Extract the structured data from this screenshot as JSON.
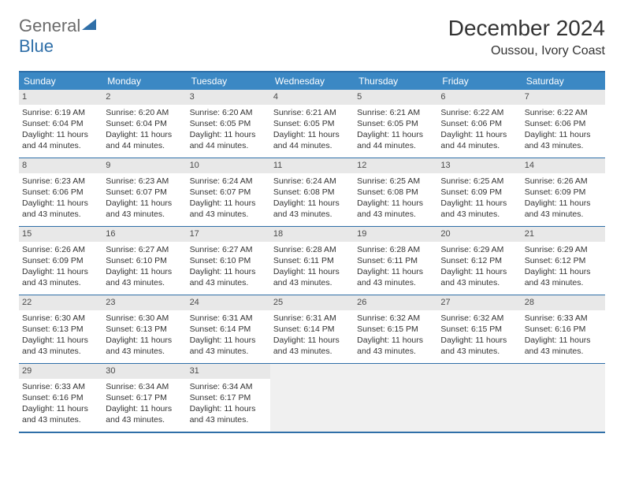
{
  "brand": {
    "name_part1": "General",
    "name_part2": "Blue",
    "colors": {
      "gray": "#6b6b6b",
      "blue": "#2f6fa8",
      "header_blue": "#3b88c4"
    }
  },
  "title": "December 2024",
  "location": "Oussou, Ivory Coast",
  "day_headers": [
    "Sunday",
    "Monday",
    "Tuesday",
    "Wednesday",
    "Thursday",
    "Friday",
    "Saturday"
  ],
  "weeks": [
    [
      {
        "n": "1",
        "sunrise": "Sunrise: 6:19 AM",
        "sunset": "Sunset: 6:04 PM",
        "daylight": "Daylight: 11 hours and 44 minutes."
      },
      {
        "n": "2",
        "sunrise": "Sunrise: 6:20 AM",
        "sunset": "Sunset: 6:04 PM",
        "daylight": "Daylight: 11 hours and 44 minutes."
      },
      {
        "n": "3",
        "sunrise": "Sunrise: 6:20 AM",
        "sunset": "Sunset: 6:05 PM",
        "daylight": "Daylight: 11 hours and 44 minutes."
      },
      {
        "n": "4",
        "sunrise": "Sunrise: 6:21 AM",
        "sunset": "Sunset: 6:05 PM",
        "daylight": "Daylight: 11 hours and 44 minutes."
      },
      {
        "n": "5",
        "sunrise": "Sunrise: 6:21 AM",
        "sunset": "Sunset: 6:05 PM",
        "daylight": "Daylight: 11 hours and 44 minutes."
      },
      {
        "n": "6",
        "sunrise": "Sunrise: 6:22 AM",
        "sunset": "Sunset: 6:06 PM",
        "daylight": "Daylight: 11 hours and 44 minutes."
      },
      {
        "n": "7",
        "sunrise": "Sunrise: 6:22 AM",
        "sunset": "Sunset: 6:06 PM",
        "daylight": "Daylight: 11 hours and 43 minutes."
      }
    ],
    [
      {
        "n": "8",
        "sunrise": "Sunrise: 6:23 AM",
        "sunset": "Sunset: 6:06 PM",
        "daylight": "Daylight: 11 hours and 43 minutes."
      },
      {
        "n": "9",
        "sunrise": "Sunrise: 6:23 AM",
        "sunset": "Sunset: 6:07 PM",
        "daylight": "Daylight: 11 hours and 43 minutes."
      },
      {
        "n": "10",
        "sunrise": "Sunrise: 6:24 AM",
        "sunset": "Sunset: 6:07 PM",
        "daylight": "Daylight: 11 hours and 43 minutes."
      },
      {
        "n": "11",
        "sunrise": "Sunrise: 6:24 AM",
        "sunset": "Sunset: 6:08 PM",
        "daylight": "Daylight: 11 hours and 43 minutes."
      },
      {
        "n": "12",
        "sunrise": "Sunrise: 6:25 AM",
        "sunset": "Sunset: 6:08 PM",
        "daylight": "Daylight: 11 hours and 43 minutes."
      },
      {
        "n": "13",
        "sunrise": "Sunrise: 6:25 AM",
        "sunset": "Sunset: 6:09 PM",
        "daylight": "Daylight: 11 hours and 43 minutes."
      },
      {
        "n": "14",
        "sunrise": "Sunrise: 6:26 AM",
        "sunset": "Sunset: 6:09 PM",
        "daylight": "Daylight: 11 hours and 43 minutes."
      }
    ],
    [
      {
        "n": "15",
        "sunrise": "Sunrise: 6:26 AM",
        "sunset": "Sunset: 6:09 PM",
        "daylight": "Daylight: 11 hours and 43 minutes."
      },
      {
        "n": "16",
        "sunrise": "Sunrise: 6:27 AM",
        "sunset": "Sunset: 6:10 PM",
        "daylight": "Daylight: 11 hours and 43 minutes."
      },
      {
        "n": "17",
        "sunrise": "Sunrise: 6:27 AM",
        "sunset": "Sunset: 6:10 PM",
        "daylight": "Daylight: 11 hours and 43 minutes."
      },
      {
        "n": "18",
        "sunrise": "Sunrise: 6:28 AM",
        "sunset": "Sunset: 6:11 PM",
        "daylight": "Daylight: 11 hours and 43 minutes."
      },
      {
        "n": "19",
        "sunrise": "Sunrise: 6:28 AM",
        "sunset": "Sunset: 6:11 PM",
        "daylight": "Daylight: 11 hours and 43 minutes."
      },
      {
        "n": "20",
        "sunrise": "Sunrise: 6:29 AM",
        "sunset": "Sunset: 6:12 PM",
        "daylight": "Daylight: 11 hours and 43 minutes."
      },
      {
        "n": "21",
        "sunrise": "Sunrise: 6:29 AM",
        "sunset": "Sunset: 6:12 PM",
        "daylight": "Daylight: 11 hours and 43 minutes."
      }
    ],
    [
      {
        "n": "22",
        "sunrise": "Sunrise: 6:30 AM",
        "sunset": "Sunset: 6:13 PM",
        "daylight": "Daylight: 11 hours and 43 minutes."
      },
      {
        "n": "23",
        "sunrise": "Sunrise: 6:30 AM",
        "sunset": "Sunset: 6:13 PM",
        "daylight": "Daylight: 11 hours and 43 minutes."
      },
      {
        "n": "24",
        "sunrise": "Sunrise: 6:31 AM",
        "sunset": "Sunset: 6:14 PM",
        "daylight": "Daylight: 11 hours and 43 minutes."
      },
      {
        "n": "25",
        "sunrise": "Sunrise: 6:31 AM",
        "sunset": "Sunset: 6:14 PM",
        "daylight": "Daylight: 11 hours and 43 minutes."
      },
      {
        "n": "26",
        "sunrise": "Sunrise: 6:32 AM",
        "sunset": "Sunset: 6:15 PM",
        "daylight": "Daylight: 11 hours and 43 minutes."
      },
      {
        "n": "27",
        "sunrise": "Sunrise: 6:32 AM",
        "sunset": "Sunset: 6:15 PM",
        "daylight": "Daylight: 11 hours and 43 minutes."
      },
      {
        "n": "28",
        "sunrise": "Sunrise: 6:33 AM",
        "sunset": "Sunset: 6:16 PM",
        "daylight": "Daylight: 11 hours and 43 minutes."
      }
    ],
    [
      {
        "n": "29",
        "sunrise": "Sunrise: 6:33 AM",
        "sunset": "Sunset: 6:16 PM",
        "daylight": "Daylight: 11 hours and 43 minutes."
      },
      {
        "n": "30",
        "sunrise": "Sunrise: 6:34 AM",
        "sunset": "Sunset: 6:17 PM",
        "daylight": "Daylight: 11 hours and 43 minutes."
      },
      {
        "n": "31",
        "sunrise": "Sunrise: 6:34 AM",
        "sunset": "Sunset: 6:17 PM",
        "daylight": "Daylight: 11 hours and 43 minutes."
      },
      null,
      null,
      null,
      null
    ]
  ],
  "styling": {
    "header_bg": "#3b88c4",
    "border_color": "#2f6fa8",
    "daynum_bg": "#e8e8e8",
    "empty_bg": "#f0f0f0",
    "text_color": "#333333",
    "body_font_size": 10.5,
    "header_font_size": 12,
    "title_font_size": 28,
    "location_font_size": 16
  }
}
